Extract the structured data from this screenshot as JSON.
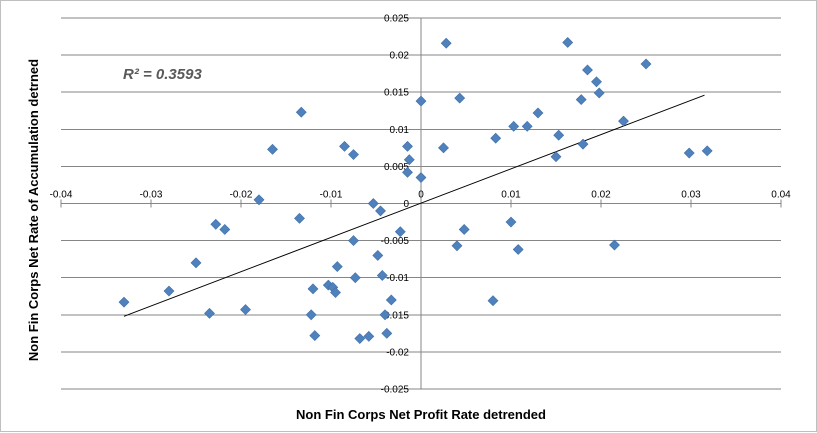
{
  "chart_data": {
    "type": "scatter",
    "title": "",
    "xlabel": "Non Fin Corps Net Profit Rate detrended",
    "ylabel": "Non Fin Corps Net Rate of Accumulation detrned",
    "xlim": [
      -0.04,
      0.04
    ],
    "ylim": [
      -0.025,
      0.025
    ],
    "x_ticks": [
      "-0.04",
      "-0.03",
      "-0.02",
      "-0.01",
      "0",
      "0.01",
      "0.02",
      "0.03",
      "0.04"
    ],
    "y_ticks": [
      "0.025",
      "0.02",
      "0.015",
      "0.01",
      "0.005",
      "0",
      "-0.005",
      "-0.01",
      "-0.015",
      "-0.02",
      "-0.025"
    ],
    "y_tick_values": [
      0.025,
      0.02,
      0.015,
      0.01,
      0.005,
      0,
      -0.005,
      -0.01,
      -0.015,
      -0.02,
      -0.025
    ],
    "x_tick_values": [
      -0.04,
      -0.03,
      -0.02,
      -0.01,
      0,
      0.01,
      0.02,
      0.03,
      0.04
    ],
    "grid": "horizontal",
    "legend": "none",
    "annotation": "R² = 0.3593",
    "marker_color": "#4f81bd",
    "trendline_color": "#000000",
    "trendline": {
      "x": [
        -0.033,
        0.0315
      ],
      "y": [
        -0.0152,
        0.0146
      ]
    },
    "series": [
      {
        "points": [
          [
            -0.033,
            -0.0133
          ],
          [
            -0.028,
            -0.0118
          ],
          [
            -0.025,
            -0.008
          ],
          [
            -0.0235,
            -0.0148
          ],
          [
            -0.0228,
            -0.0028
          ],
          [
            -0.0218,
            -0.0035
          ],
          [
            -0.0195,
            -0.0143
          ],
          [
            -0.018,
            0.0005
          ],
          [
            -0.0165,
            0.0073
          ],
          [
            -0.0135,
            -0.002
          ],
          [
            -0.0133,
            0.0123
          ],
          [
            -0.0122,
            -0.015
          ],
          [
            -0.012,
            -0.0115
          ],
          [
            -0.0118,
            -0.0178
          ],
          [
            -0.0103,
            -0.011
          ],
          [
            -0.0098,
            -0.0113
          ],
          [
            -0.0095,
            -0.012
          ],
          [
            -0.0093,
            -0.0085
          ],
          [
            -0.0085,
            0.0077
          ],
          [
            -0.0075,
            0.0066
          ],
          [
            -0.0075,
            -0.005
          ],
          [
            -0.0073,
            -0.01
          ],
          [
            -0.0068,
            -0.0182
          ],
          [
            -0.0058,
            -0.0179
          ],
          [
            -0.0053,
            0.0
          ],
          [
            -0.0048,
            -0.007
          ],
          [
            -0.0045,
            -0.001
          ],
          [
            -0.0043,
            -0.0097
          ],
          [
            -0.004,
            -0.015
          ],
          [
            -0.0038,
            -0.0175
          ],
          [
            -0.0033,
            -0.013
          ],
          [
            -0.0023,
            -0.0038
          ],
          [
            -0.0015,
            0.0042
          ],
          [
            -0.0015,
            0.0077
          ],
          [
            -0.0013,
            0.0059
          ],
          [
            0.0,
            0.0138
          ],
          [
            0.0,
            0.0035
          ],
          [
            0.0025,
            0.0075
          ],
          [
            0.0028,
            0.0216
          ],
          [
            0.004,
            -0.0057
          ],
          [
            0.0043,
            0.0142
          ],
          [
            0.0048,
            -0.0035
          ],
          [
            0.008,
            -0.0131
          ],
          [
            0.0083,
            0.0088
          ],
          [
            0.01,
            -0.0025
          ],
          [
            0.0103,
            0.0104
          ],
          [
            0.0108,
            -0.0062
          ],
          [
            0.0118,
            0.0104
          ],
          [
            0.013,
            0.0122
          ],
          [
            0.015,
            0.0063
          ],
          [
            0.0153,
            0.0092
          ],
          [
            0.0163,
            0.0217
          ],
          [
            0.0178,
            0.014
          ],
          [
            0.018,
            0.008
          ],
          [
            0.0185,
            0.018
          ],
          [
            0.0195,
            0.0164
          ],
          [
            0.0198,
            0.0149
          ],
          [
            0.0215,
            -0.0056
          ],
          [
            0.0225,
            0.0111
          ],
          [
            0.025,
            0.0188
          ],
          [
            0.0298,
            0.0068
          ],
          [
            0.0318,
            0.0071
          ]
        ]
      }
    ]
  }
}
